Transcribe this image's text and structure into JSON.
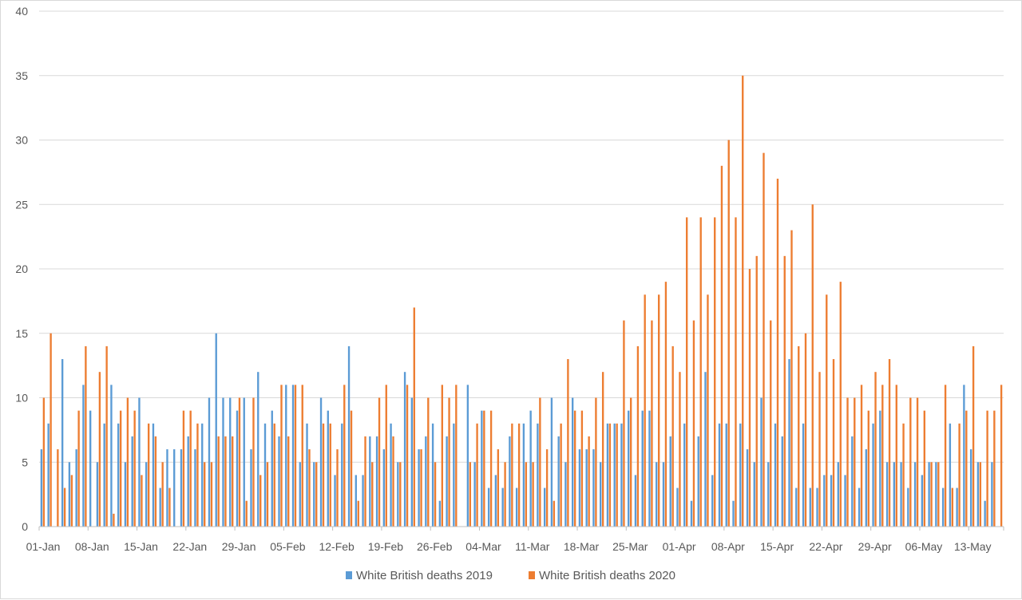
{
  "chart_data": {
    "type": "bar",
    "title": "",
    "xlabel": "",
    "ylabel": "",
    "ylim": [
      0,
      40
    ],
    "yticks": [
      0,
      5,
      10,
      15,
      20,
      25,
      30,
      35,
      40
    ],
    "grid": true,
    "legend_position": "bottom",
    "x_tick_labels": [
      "01-Jan",
      "08-Jan",
      "15-Jan",
      "22-Jan",
      "29-Jan",
      "05-Feb",
      "12-Feb",
      "19-Feb",
      "26-Feb",
      "04-Mar",
      "11-Mar",
      "18-Mar",
      "25-Mar",
      "01-Apr",
      "08-Apr",
      "15-Apr",
      "22-Apr",
      "29-Apr",
      "06-May",
      "13-May"
    ],
    "series": [
      {
        "name": "White British deaths 2019",
        "color": "#5B9BD5",
        "values": [
          6,
          8,
          0,
          13,
          5,
          6,
          11,
          9,
          5,
          8,
          11,
          8,
          5,
          7,
          10,
          5,
          8,
          3,
          6,
          6,
          6,
          7,
          6,
          8,
          10,
          15,
          10,
          10,
          9,
          10,
          6,
          12,
          8,
          9,
          7,
          11,
          11,
          5,
          8,
          5,
          10,
          9,
          4,
          8,
          14,
          4,
          4,
          7,
          7,
          6,
          8,
          5,
          12,
          10,
          6,
          7,
          8,
          2,
          7,
          8,
          0,
          11,
          5,
          9,
          3,
          4,
          3,
          7,
          3,
          8,
          9,
          8,
          3,
          10,
          7,
          5,
          10,
          6,
          6,
          6,
          5,
          8,
          8,
          8,
          9,
          4,
          9,
          9,
          5,
          5,
          7,
          3,
          8,
          2,
          7,
          12,
          4,
          8,
          8,
          2,
          8,
          6,
          5,
          10,
          5,
          8,
          7,
          13,
          3,
          8,
          3,
          3,
          4,
          4,
          5,
          4,
          7,
          3,
          6,
          8,
          9,
          5,
          5,
          5,
          3,
          5,
          4,
          5,
          5,
          3,
          8,
          3,
          11,
          6,
          5,
          2,
          5
        ],
        "date_start": "01-Jan"
      },
      {
        "name": "White British deaths 2020",
        "color": "#ED7D31",
        "values": [
          10,
          15,
          6,
          3,
          4,
          9,
          14,
          0,
          12,
          14,
          1,
          9,
          10,
          9,
          4,
          8,
          7,
          5,
          3,
          0,
          9,
          9,
          8,
          5,
          5,
          7,
          7,
          7,
          10,
          2,
          10,
          4,
          5,
          8,
          11,
          7,
          11,
          11,
          6,
          5,
          8,
          8,
          6,
          11,
          9,
          2,
          7,
          5,
          10,
          11,
          7,
          5,
          11,
          17,
          6,
          10,
          5,
          11,
          10,
          11,
          0,
          5,
          8,
          9,
          9,
          6,
          5,
          8,
          8,
          5,
          5,
          10,
          6,
          2,
          8,
          13,
          9,
          9,
          7,
          10,
          12,
          8,
          8,
          16,
          10,
          14,
          18,
          16,
          18,
          19,
          14,
          12,
          24,
          16,
          24,
          18,
          24,
          28,
          30,
          24,
          35,
          20,
          21,
          29,
          16,
          27,
          21,
          23,
          14,
          15,
          25,
          12,
          18,
          13,
          19,
          10,
          10,
          11,
          9,
          12,
          11,
          13,
          11,
          8,
          10,
          10,
          9,
          5,
          5,
          11,
          3,
          8,
          9,
          14,
          5,
          9,
          9,
          11
        ],
        "date_start": "01-Jan"
      }
    ]
  }
}
